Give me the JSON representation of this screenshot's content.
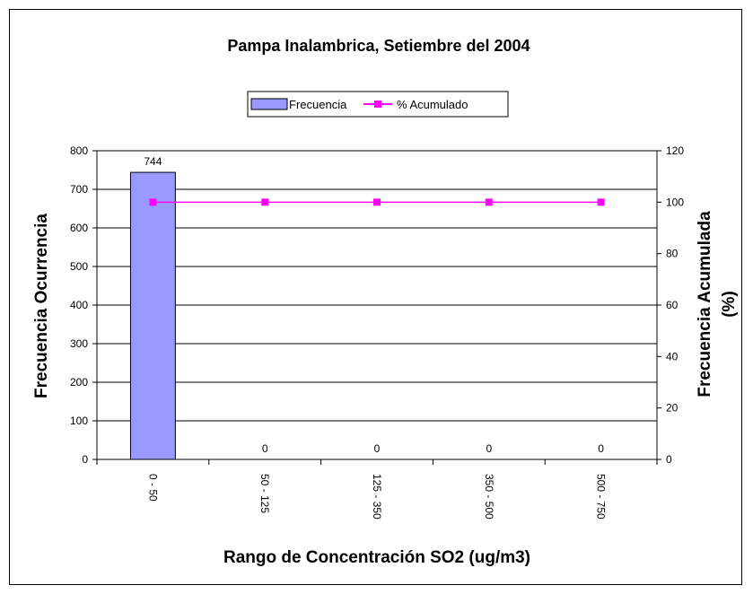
{
  "chart_data": {
    "type": "bar",
    "title": "Pampa Inalambrica, Setiembre del 2004",
    "xlabel": "Rango de Concentración SO2 (ug/m3)",
    "ylabel": "Frecuencia Ocurrencia",
    "y2label_line1": "Frecuencia Acumulada",
    "y2label_line2": "(%)",
    "categories": [
      "0 - 50",
      "50 - 125",
      "125 - 350",
      "350 - 500",
      "500 - 750"
    ],
    "ylim": [
      0,
      800
    ],
    "y_ticks": [
      0,
      100,
      200,
      300,
      400,
      500,
      600,
      700,
      800
    ],
    "y2lim": [
      0,
      120
    ],
    "y2_ticks": [
      0,
      20,
      40,
      60,
      80,
      100,
      120
    ],
    "grid": true,
    "legend_position": "top-center",
    "series": [
      {
        "name": "Frecuencia",
        "type": "bar",
        "axis": "left",
        "values": [
          744,
          0,
          0,
          0,
          0
        ],
        "data_labels": [
          "744",
          "0",
          "0",
          "0",
          "0"
        ],
        "color": "#9999ff"
      },
      {
        "name": "% Acumulado",
        "type": "line",
        "axis": "right",
        "values": [
          100,
          100,
          100,
          100,
          100
        ],
        "color": "#ff00ff"
      }
    ]
  }
}
